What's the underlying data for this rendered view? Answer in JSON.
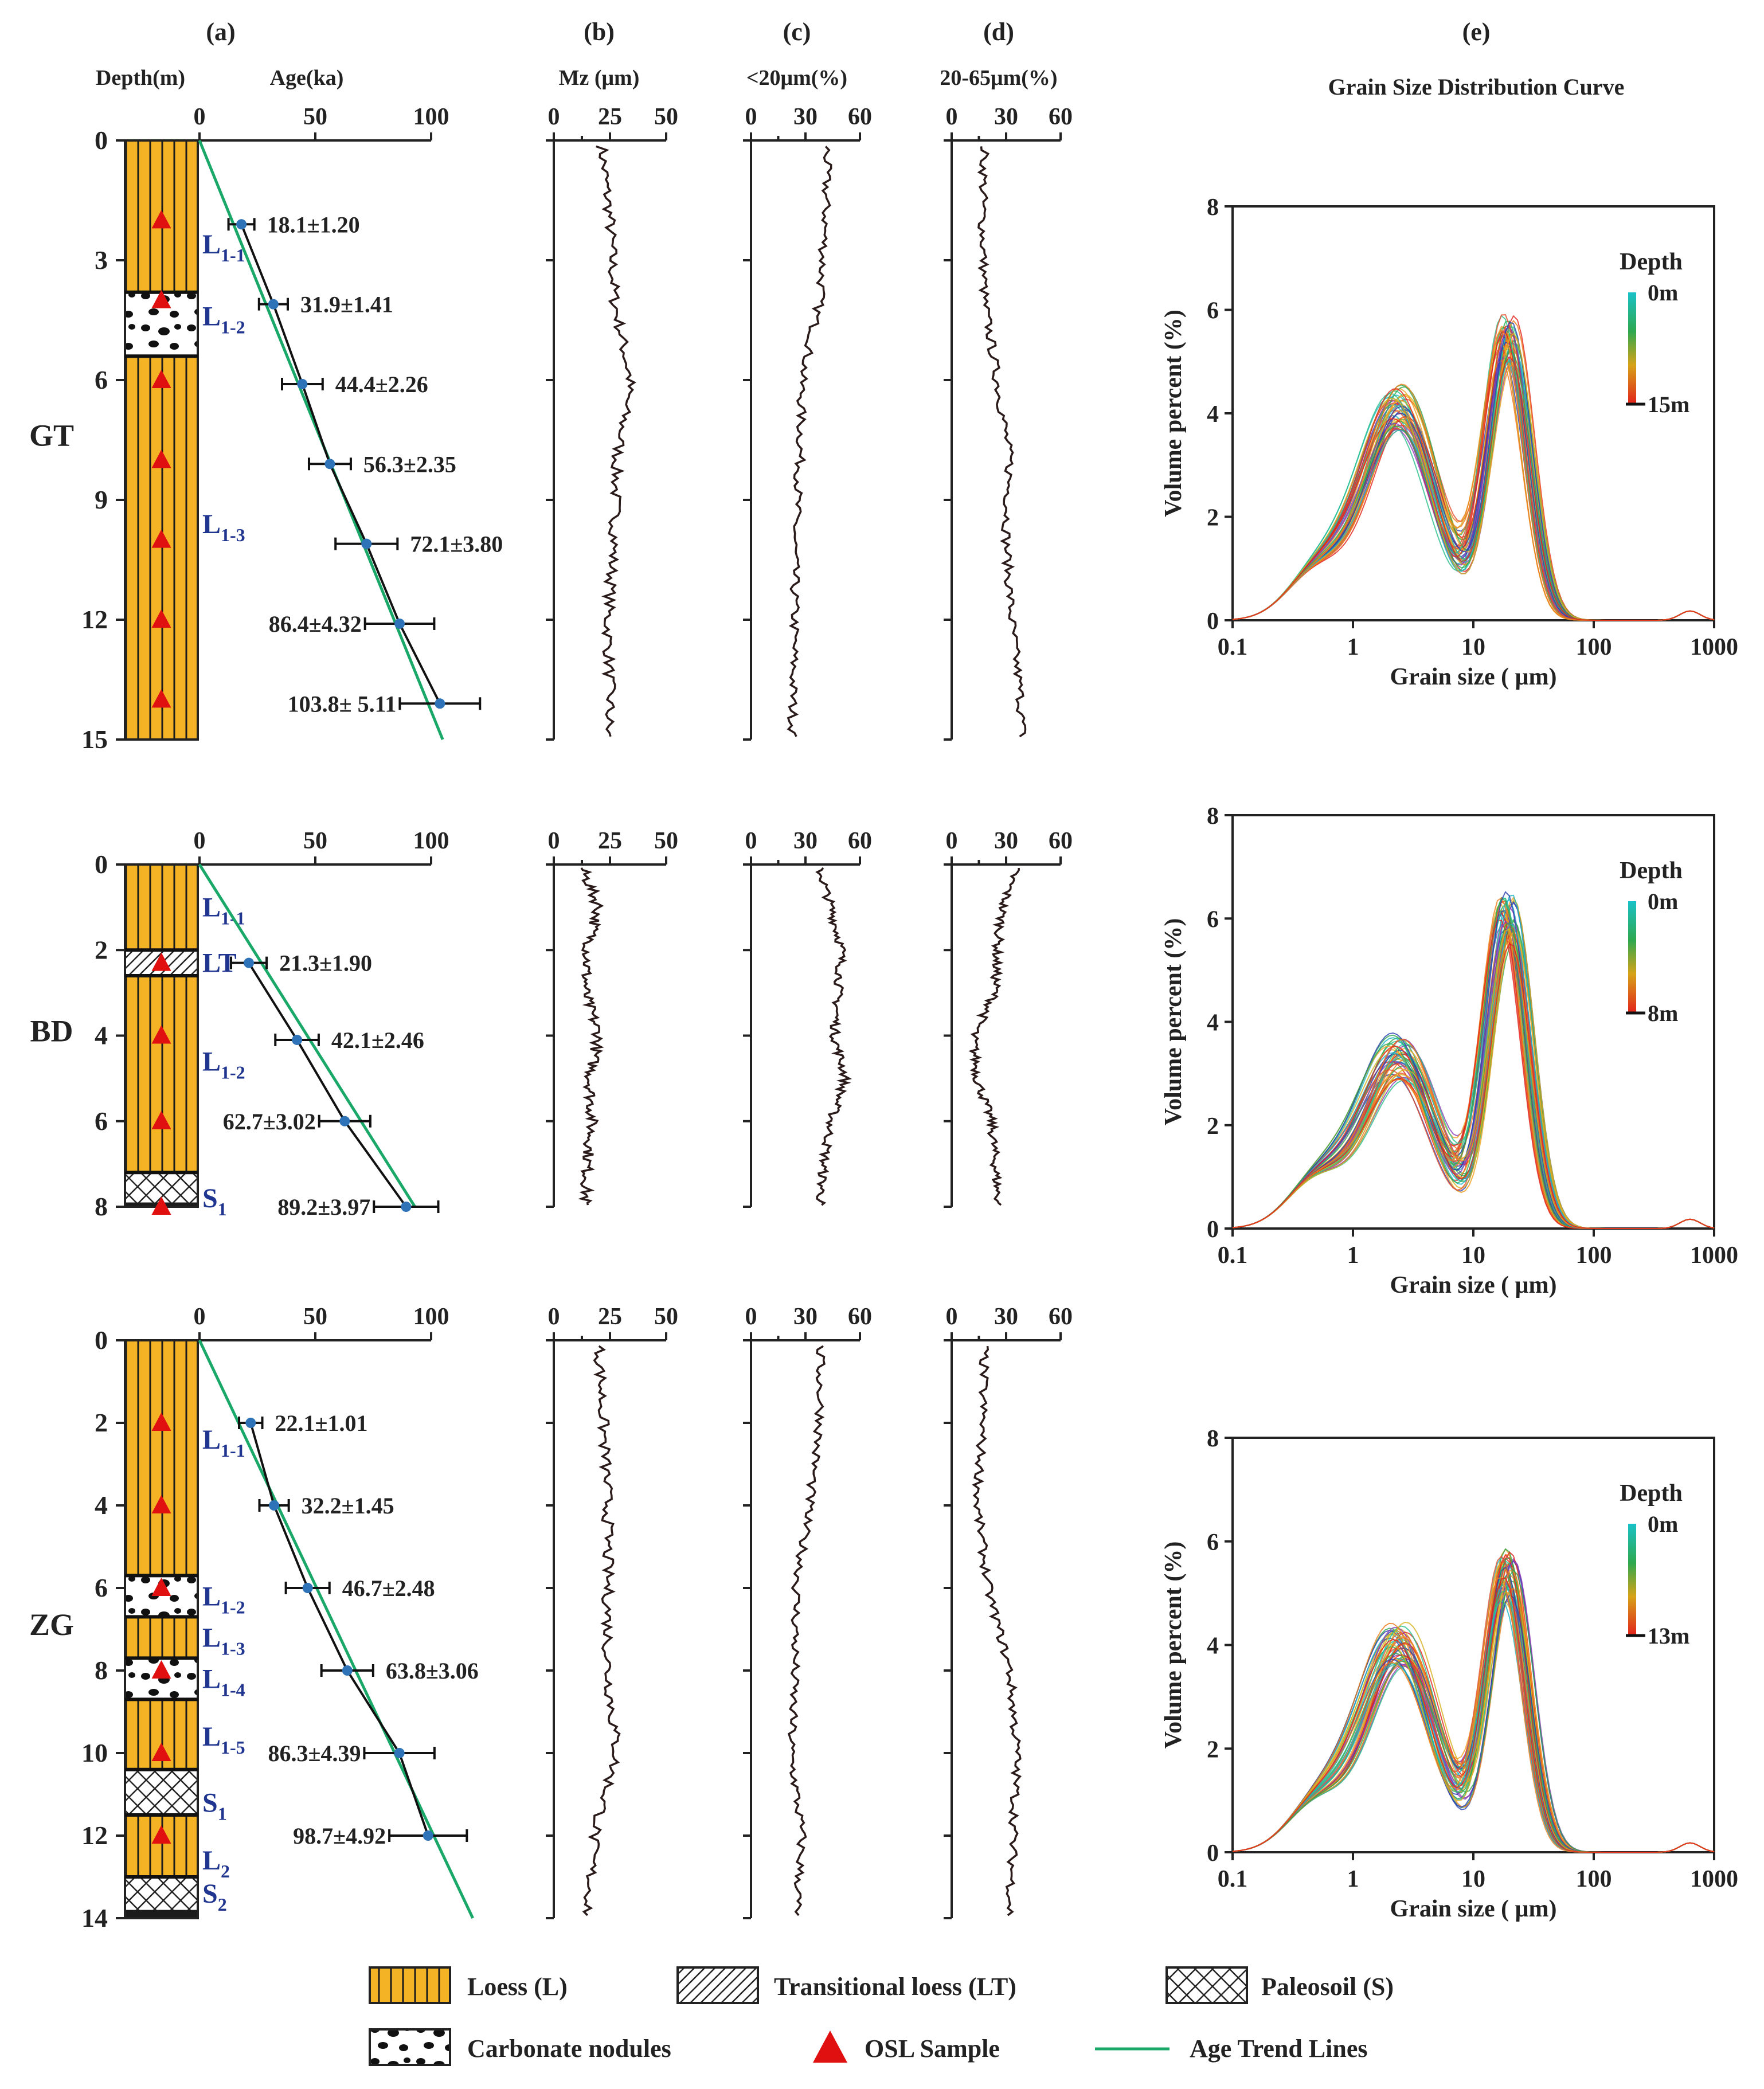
{
  "figure": {
    "panel_labels": [
      "(a)",
      "(b)",
      "(c)",
      "(d)",
      "(e)"
    ],
    "header": {
      "depth": "Depth(m)",
      "age": "Age(ka)",
      "mz": "Mz (μm)",
      "lt20": "<20μm(%)",
      "r20_65": "20-65μm(%)",
      "gsd_title": "Grain Size Distribution Curve"
    },
    "legend": {
      "loess": "Loess (L)",
      "transitional": "Transitional loess (LT)",
      "paleosol": "Paleosoil (S)",
      "nodules": "Carbonate nodules",
      "osl": "OSL Sample",
      "trend": "Age Trend Lines"
    },
    "colors": {
      "loess": "#F4B324",
      "trend": "#1AA869",
      "osl": "#E11010",
      "point": "#2E73B8",
      "unit_label": "#1F3590",
      "ink": "#222222"
    }
  },
  "chart_data": [
    {
      "type": "line",
      "title": "GT",
      "ylabel": "Depth(m)",
      "ylim": [
        0,
        15
      ],
      "depth_ticks": [
        0,
        3,
        6,
        9,
        12,
        15
      ],
      "age_axis": {
        "label": "Age(ka)",
        "ticks": [
          0,
          50,
          100
        ]
      },
      "units": [
        {
          "label": "L",
          "sub": "1-1",
          "depth": 2.6
        },
        {
          "label": "L",
          "sub": "1-2",
          "depth": 4.4
        },
        {
          "label": "L",
          "sub": "1-3",
          "depth": 9.6
        }
      ],
      "strata": [
        {
          "type": "loess",
          "top": 0,
          "bottom": 3.8
        },
        {
          "type": "nodules",
          "top": 3.8,
          "bottom": 5.4
        },
        {
          "type": "loess",
          "top": 5.4,
          "bottom": 15
        }
      ],
      "horizons": [
        3.8,
        5.4
      ],
      "osl_depths": [
        2,
        4,
        6,
        8,
        10,
        12,
        14
      ],
      "ages": [
        {
          "depth": 2.1,
          "age": 18.1,
          "err": 1.2,
          "label": "18.1±1.20",
          "side": "right"
        },
        {
          "depth": 4.1,
          "age": 31.9,
          "err": 1.41,
          "label": "31.9±1.41",
          "side": "right"
        },
        {
          "depth": 6.1,
          "age": 44.4,
          "err": 2.26,
          "label": "44.4±2.26",
          "side": "right"
        },
        {
          "depth": 8.1,
          "age": 56.3,
          "err": 2.35,
          "label": "56.3±2.35",
          "side": "right"
        },
        {
          "depth": 10.1,
          "age": 72.1,
          "err": 3.8,
          "label": "72.1±3.80",
          "side": "right"
        },
        {
          "depth": 12.1,
          "age": 86.4,
          "err": 4.32,
          "label": "86.4±4.32",
          "side": "left"
        },
        {
          "depth": 14.1,
          "age": 103.8,
          "err": 5.11,
          "label": "103.8± 5.11",
          "side": "left"
        }
      ],
      "trend_line": [
        [
          0,
          0
        ],
        [
          15,
          105
        ]
      ],
      "mz": {
        "ticks": [
          0,
          25,
          50
        ],
        "depth": [
          0,
          2,
          4,
          6,
          8,
          10,
          12,
          14,
          15
        ],
        "values": [
          21,
          25,
          27,
          34,
          28,
          27,
          24,
          25,
          24
        ]
      },
      "fine": {
        "ticks": [
          0,
          30,
          60
        ],
        "depth": [
          0,
          2,
          4,
          6,
          8,
          10,
          12,
          14,
          15
        ],
        "values": [
          42,
          41,
          38,
          28,
          27,
          24,
          24,
          23,
          23
        ]
      },
      "silt": {
        "ticks": [
          0,
          30,
          60
        ],
        "depth": [
          0,
          2,
          4,
          6,
          8,
          10,
          12,
          14,
          15
        ],
        "values": [
          18,
          17,
          18,
          25,
          32,
          30,
          33,
          38,
          39
        ]
      },
      "gsd": {
        "xlabel": "Grain size ( μm)",
        "ylabel": "Volume percent (%)",
        "xlim": [
          0.1,
          1000
        ],
        "ylim": [
          0,
          8
        ],
        "xticks": [
          0.1,
          1,
          10,
          100,
          1000
        ],
        "yticks": [
          0,
          2,
          4,
          6,
          8
        ],
        "colorbar": {
          "title": "Depth",
          "top": "0m",
          "bottom": "15m"
        },
        "peak1": 4.1,
        "peak2": 5.4
      }
    },
    {
      "type": "line",
      "title": "BD",
      "ylabel": "Depth(m)",
      "ylim": [
        0,
        8
      ],
      "depth_ticks": [
        0,
        2,
        4,
        6,
        8
      ],
      "age_axis": {
        "label": "Age(ka)",
        "ticks": [
          0,
          50,
          100
        ]
      },
      "units": [
        {
          "label": "L",
          "sub": "1-1",
          "depth": 1.0
        },
        {
          "label": "LT",
          "sub": "",
          "depth": 2.3
        },
        {
          "label": "L",
          "sub": "1-2",
          "depth": 4.6
        },
        {
          "label": "S",
          "sub": "1",
          "depth": 7.8
        }
      ],
      "strata": [
        {
          "type": "loess",
          "top": 0,
          "bottom": 2.0
        },
        {
          "type": "transitional",
          "top": 2.0,
          "bottom": 2.6
        },
        {
          "type": "loess",
          "top": 2.6,
          "bottom": 7.2
        },
        {
          "type": "paleosol",
          "top": 7.2,
          "bottom": 7.9
        },
        {
          "type": "base",
          "top": 7.9,
          "bottom": 8
        }
      ],
      "horizons": [
        2.0,
        2.6,
        7.2
      ],
      "osl_depths": [
        2.3,
        4.0,
        6.0,
        8.0
      ],
      "ages": [
        {
          "depth": 2.3,
          "age": 21.3,
          "err": 1.9,
          "label": "21.3±1.90",
          "side": "right"
        },
        {
          "depth": 4.1,
          "age": 42.1,
          "err": 2.46,
          "label": "42.1±2.46",
          "side": "right"
        },
        {
          "depth": 6.0,
          "age": 62.7,
          "err": 3.02,
          "label": "62.7±3.02",
          "side": "left"
        },
        {
          "depth": 8.0,
          "age": 89.2,
          "err": 3.97,
          "label": "89.2±3.97",
          "side": "left"
        }
      ],
      "trend_line": [
        [
          0,
          0
        ],
        [
          8,
          93
        ]
      ],
      "mz": {
        "ticks": [
          0,
          25,
          50
        ],
        "depth": [
          0,
          1,
          2,
          3,
          4,
          5,
          6,
          7,
          8
        ],
        "values": [
          12,
          20,
          15,
          14,
          20,
          16,
          17,
          15,
          14
        ]
      },
      "fine": {
        "ticks": [
          0,
          30,
          60
        ],
        "depth": [
          0,
          1,
          2,
          3,
          4,
          5,
          6,
          7,
          8
        ],
        "values": [
          37,
          44,
          50,
          48,
          46,
          52,
          44,
          40,
          38
        ]
      },
      "silt": {
        "ticks": [
          0,
          30,
          60
        ],
        "depth": [
          0,
          1,
          2,
          3,
          4,
          5,
          6,
          7,
          8
        ],
        "values": [
          36,
          28,
          25,
          24,
          12,
          14,
          22,
          24,
          26
        ]
      },
      "gsd": {
        "xlabel": "Grain size ( μm)",
        "ylabel": "Volume percent (%)",
        "xlim": [
          0.1,
          1000
        ],
        "ylim": [
          0,
          8
        ],
        "xticks": [
          0.1,
          1,
          10,
          100,
          1000
        ],
        "yticks": [
          0,
          2,
          4,
          6,
          8
        ],
        "colorbar": {
          "title": "Depth",
          "top": "0m",
          "bottom": "8m"
        },
        "peak1": 3.3,
        "peak2": 6.0
      }
    },
    {
      "type": "line",
      "title": "ZG",
      "ylabel": "Depth(m)",
      "ylim": [
        0,
        14
      ],
      "depth_ticks": [
        0,
        2,
        4,
        6,
        8,
        10,
        12,
        14
      ],
      "age_axis": {
        "label": "Age(ka)",
        "ticks": [
          0,
          50,
          100
        ]
      },
      "units": [
        {
          "label": "L",
          "sub": "1-1",
          "depth": 2.4
        },
        {
          "label": "L",
          "sub": "1-2",
          "depth": 6.2
        },
        {
          "label": "L",
          "sub": "1-3",
          "depth": 7.2
        },
        {
          "label": "L",
          "sub": "1-4",
          "depth": 8.2
        },
        {
          "label": "L",
          "sub": "1-5",
          "depth": 9.6
        },
        {
          "label": "S",
          "sub": "1",
          "depth": 11.2
        },
        {
          "label": "L",
          "sub": "2",
          "depth": 12.6
        },
        {
          "label": "S",
          "sub": "2",
          "depth": 13.4
        }
      ],
      "strata": [
        {
          "type": "loess",
          "top": 0,
          "bottom": 5.7
        },
        {
          "type": "nodules",
          "top": 5.7,
          "bottom": 6.7
        },
        {
          "type": "loess",
          "top": 6.7,
          "bottom": 7.7
        },
        {
          "type": "nodules",
          "top": 7.7,
          "bottom": 8.7
        },
        {
          "type": "loess",
          "top": 8.7,
          "bottom": 10.4
        },
        {
          "type": "paleosol",
          "top": 10.4,
          "bottom": 11.5
        },
        {
          "type": "loess",
          "top": 11.5,
          "bottom": 13.0
        },
        {
          "type": "paleosol",
          "top": 13.0,
          "bottom": 13.8
        },
        {
          "type": "base",
          "top": 13.8,
          "bottom": 14
        }
      ],
      "horizons": [
        5.7,
        6.7,
        7.7,
        8.7,
        10.4,
        11.5,
        13.0
      ],
      "osl_depths": [
        2,
        4,
        6,
        8,
        10,
        12
      ],
      "ages": [
        {
          "depth": 2.0,
          "age": 22.1,
          "err": 1.01,
          "label": "22.1±1.01",
          "side": "right"
        },
        {
          "depth": 4.0,
          "age": 32.2,
          "err": 1.45,
          "label": "32.2±1.45",
          "side": "right"
        },
        {
          "depth": 6.0,
          "age": 46.7,
          "err": 2.48,
          "label": "46.7±2.48",
          "side": "right"
        },
        {
          "depth": 8.0,
          "age": 63.8,
          "err": 3.06,
          "label": "63.8±3.06",
          "side": "right"
        },
        {
          "depth": 10.0,
          "age": 86.3,
          "err": 4.39,
          "label": "86.3±4.39",
          "side": "left"
        },
        {
          "depth": 12.0,
          "age": 98.7,
          "err": 4.92,
          "label": "98.7±4.92",
          "side": "left"
        }
      ],
      "trend_line": [
        [
          0,
          0
        ],
        [
          14,
          118
        ]
      ],
      "mz": {
        "ticks": [
          0,
          25,
          50
        ],
        "depth": [
          0,
          2,
          4,
          6,
          8,
          10,
          12,
          14
        ],
        "values": [
          20,
          22,
          24,
          24,
          24,
          28,
          18,
          15
        ]
      },
      "fine": {
        "ticks": [
          0,
          30,
          60
        ],
        "depth": [
          0,
          2,
          4,
          6,
          8,
          10,
          12,
          14
        ],
        "values": [
          38,
          38,
          32,
          25,
          24,
          22,
          28,
          25
        ]
      },
      "silt": {
        "ticks": [
          0,
          30,
          60
        ],
        "depth": [
          0,
          2,
          4,
          6,
          8,
          10,
          12,
          14
        ],
        "values": [
          18,
          17,
          14,
          20,
          32,
          36,
          34,
          32
        ]
      },
      "gsd": {
        "xlabel": "Grain size ( μm)",
        "ylabel": "Volume percent (%)",
        "xlim": [
          0.1,
          1000
        ],
        "ylim": [
          0,
          8
        ],
        "xticks": [
          0.1,
          1,
          10,
          100,
          1000
        ],
        "yticks": [
          0,
          2,
          4,
          6,
          8
        ],
        "colorbar": {
          "title": "Depth",
          "top": "0m",
          "bottom": "13m"
        },
        "peak1": 4.0,
        "peak2": 5.3
      }
    }
  ]
}
